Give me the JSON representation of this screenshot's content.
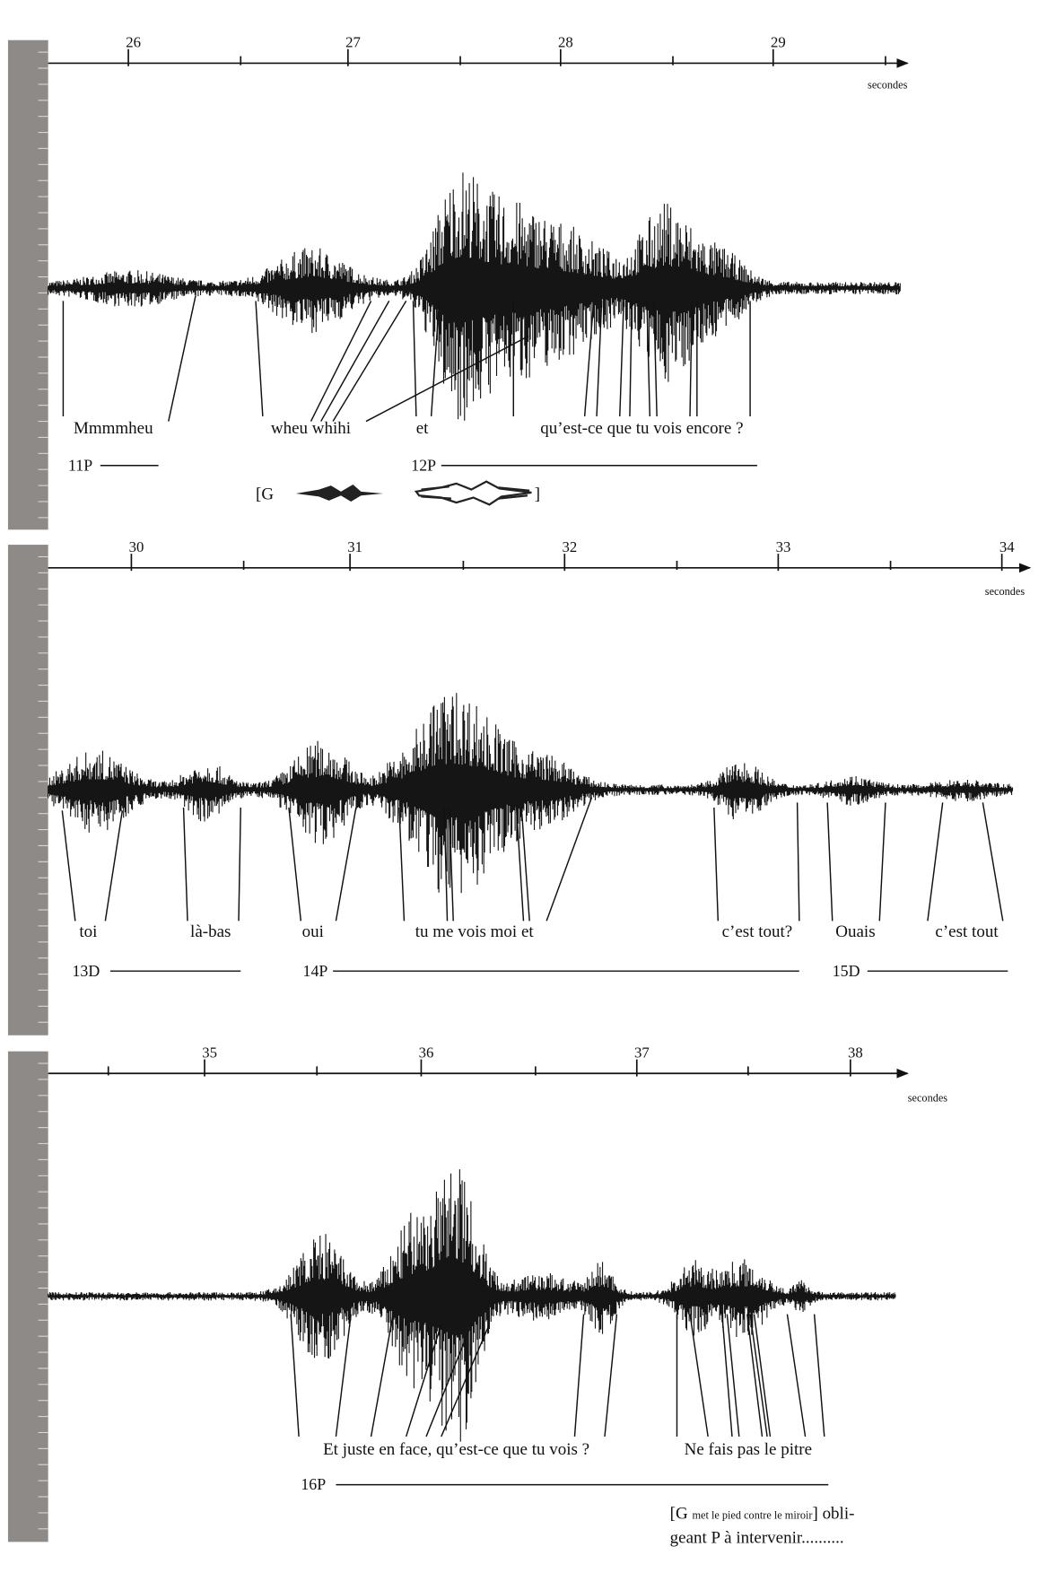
{
  "panels": [
    {
      "ticks": [
        "26",
        "27",
        "28",
        "29"
      ],
      "unit": "secondes",
      "words": [
        "Mmmmheu",
        "wheu whihi",
        "et",
        "qu’est-ce que tu vois encore ?"
      ],
      "turns": [
        "11P",
        "12P"
      ],
      "gesture": {
        "open": "[G",
        "close": "]"
      }
    },
    {
      "ticks": [
        "30",
        "31",
        "32",
        "33",
        "34"
      ],
      "unit": "secondes",
      "words": [
        "toi",
        "là-bas",
        "oui",
        "tu me vois moi et",
        "c’est tout?",
        "Ouais",
        "c’est tout"
      ],
      "turns": [
        "13D",
        "14P",
        "15D"
      ]
    },
    {
      "ticks": [
        "35",
        "36",
        "37",
        "38"
      ],
      "unit": "secondes",
      "words": [
        "Et juste en face, qu’est-ce que tu vois ?",
        "Ne fais pas le pitre"
      ],
      "turns": [
        "16P"
      ]
    }
  ],
  "note": {
    "open": "[G",
    "small": "met le pied contre le miroir",
    "close": "] obli-",
    "line2": "geant P à intervenir.........."
  }
}
